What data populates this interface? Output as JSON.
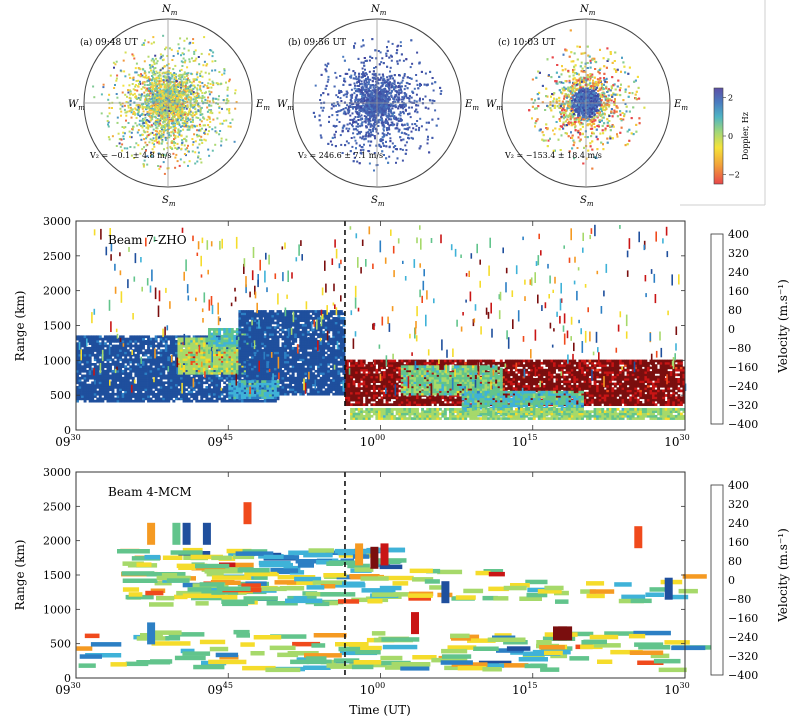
{
  "chart_data": [
    {
      "type": "scatter",
      "subtype": "polar-skymap",
      "panels": [
        {
          "label": "(a) 09:48 UT",
          "velocity_text": "V₂ = −0.1 ± 4.8 m/s",
          "spread": 0.82,
          "count": 2600,
          "doppler_mean": 0.0,
          "doppler_sd": 1.0
        },
        {
          "label": "(b) 09:56 UT",
          "velocity_text": "V₂ = 246.6 ± 7.1 m/s",
          "spread": 0.78,
          "count": 2600,
          "doppler_mean": 2.1,
          "doppler_sd": 0.15
        },
        {
          "label": "(c) 10:03 UT",
          "velocity_text": "V₂ = −153.4 ± 18.4 m/s",
          "spread": 0.7,
          "count": 3000,
          "doppler_mean": -0.6,
          "doppler_sd": 1.4
        }
      ],
      "directions": {
        "north": "N",
        "south": "S",
        "west": "W",
        "east": "E",
        "subscript": "m"
      },
      "colorbar": {
        "label": "Doppler, Hz",
        "range": [
          -2.5,
          2.5
        ],
        "ticks": [
          "2",
          "0",
          "−2"
        ],
        "tick_values": [
          2,
          0,
          -2
        ]
      }
    },
    {
      "type": "heatmap",
      "title": "Beam 7-ZHO",
      "xlabel": "",
      "ylabel": "Range (km)",
      "xlim_minutes": [
        0,
        60
      ],
      "ylim": [
        0,
        3000
      ],
      "yticks": [
        "0",
        "500",
        "1000",
        "1500",
        "2000",
        "2500",
        "3000"
      ],
      "ytick_values": [
        0,
        500,
        1000,
        1500,
        2000,
        2500,
        3000
      ],
      "marker_time_min": 26.5,
      "colorbar": {
        "label": "Velocity (m.s⁻¹)",
        "range": [
          -400,
          400
        ],
        "ticks": [
          "400",
          "320",
          "240",
          "160",
          "80",
          "0",
          "−80",
          "−160",
          "−240",
          "−320",
          "−400"
        ]
      },
      "blocks": [
        {
          "t0": 0,
          "t1": 20,
          "r0": 400,
          "r1": 1350,
          "v": 380
        },
        {
          "t0": 10,
          "t1": 16,
          "r0": 900,
          "r1": 1100,
          "v": -200
        },
        {
          "t0": 10,
          "t1": 17,
          "r0": 800,
          "r1": 1300,
          "v": 40
        },
        {
          "t0": 13,
          "t1": 18,
          "r0": 1200,
          "r1": 1450,
          "v": 150
        },
        {
          "t0": 16,
          "t1": 26.5,
          "r0": 500,
          "r1": 1700,
          "v": 380
        },
        {
          "t0": 15,
          "t1": 20,
          "r0": 450,
          "r1": 700,
          "v": 200
        },
        {
          "t0": 26.5,
          "t1": 60,
          "r0": 350,
          "r1": 1000,
          "v": -350
        },
        {
          "t0": 32,
          "t1": 42,
          "r0": 500,
          "r1": 900,
          "v": 100
        },
        {
          "t0": 38,
          "t1": 50,
          "r0": 200,
          "r1": 550,
          "v": 150
        },
        {
          "t0": 27,
          "t1": 60,
          "r0": 150,
          "r1": 300,
          "v": 60
        }
      ]
    },
    {
      "type": "heatmap",
      "title": "Beam 4-MCM",
      "xlabel": "Time (UT)",
      "ylabel": "Range (km)",
      "xlim_minutes": [
        0,
        60
      ],
      "ylim": [
        0,
        3000
      ],
      "yticks": [
        "0",
        "500",
        "1000",
        "1500",
        "2000",
        "2500",
        "3000"
      ],
      "ytick_values": [
        0,
        500,
        1000,
        1500,
        2000,
        2500,
        3000
      ],
      "xticks": [
        {
          "t": 0,
          "main": "09",
          "sup": "30"
        },
        {
          "t": 15,
          "main": "09",
          "sup": "45"
        },
        {
          "t": 30,
          "main": "10",
          "sup": "00"
        },
        {
          "t": 45,
          "main": "10",
          "sup": "15"
        },
        {
          "t": 60,
          "main": "10",
          "sup": "30"
        }
      ],
      "marker_time_min": 26.5,
      "colorbar": {
        "label": "Velocity (m.s⁻¹)",
        "range": [
          -400,
          400
        ],
        "ticks": [
          "400",
          "320",
          "240",
          "160",
          "80",
          "0",
          "−80",
          "−160",
          "−240",
          "−320",
          "−400"
        ]
      },
      "cells": [
        {
          "t": 7,
          "r": 2100,
          "v": -120
        },
        {
          "t": 9.5,
          "r": 2100,
          "v": 100
        },
        {
          "t": 10.5,
          "r": 2100,
          "v": 360
        },
        {
          "t": 12.5,
          "r": 2100,
          "v": 380
        },
        {
          "t": 16.5,
          "r": 2400,
          "v": -240
        },
        {
          "t": 55,
          "r": 2050,
          "v": -240
        },
        {
          "t": 27.5,
          "r": 1800,
          "v": -150
        },
        {
          "t": 29,
          "r": 1750,
          "v": -360
        },
        {
          "t": 30,
          "r": 1800,
          "v": -300
        },
        {
          "t": 47,
          "r": 650,
          "v": -380
        },
        {
          "t": 47.5,
          "r": 650,
          "v": -380
        },
        {
          "t": 7,
          "r": 650,
          "v": 300
        },
        {
          "t": 33,
          "r": 800,
          "v": -320
        },
        {
          "t": 36,
          "r": 1250,
          "v": 360
        },
        {
          "t": 58,
          "r": 1300,
          "v": 380
        }
      ],
      "band": {
        "t0": 4,
        "t1": 30,
        "r0": 1100,
        "r1": 1900
      },
      "low_band": {
        "t0": 0,
        "t1": 60,
        "r0": 150,
        "r1": 700
      }
    }
  ],
  "figure": {
    "x_axis_title": "Time (UT)"
  }
}
